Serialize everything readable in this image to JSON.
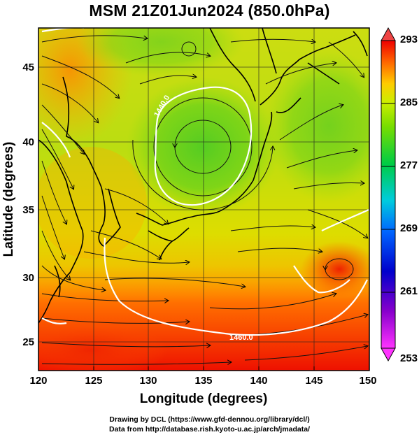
{
  "title": "MSM 21Z01Jun2024 (850.0hPa)",
  "xlabel": "Longitude (degrees)",
  "ylabel": "Latitude  (degrees)",
  "x_ticks": [
    "120",
    "125",
    "130",
    "135",
    "140",
    "145",
    "150"
  ],
  "y_ticks": [
    "25",
    "30",
    "35",
    "40",
    "45"
  ],
  "colorbar_labels": [
    "293",
    "285",
    "277",
    "269",
    "261",
    "253"
  ],
  "contour_labels": [
    "1440.0",
    "1460.0"
  ],
  "credits": {
    "line1": "Drawing by DCL (https://www.gfd-dennou.org/library/dcl/)",
    "line2": "Data from http://database.rish.kyoto-u.ac.jp/arch/jmadata/"
  },
  "map_data": {
    "lon_range": [
      120,
      150
    ],
    "lat_range": [
      22.4,
      47.6
    ],
    "color_range": [
      253,
      293
    ]
  }
}
